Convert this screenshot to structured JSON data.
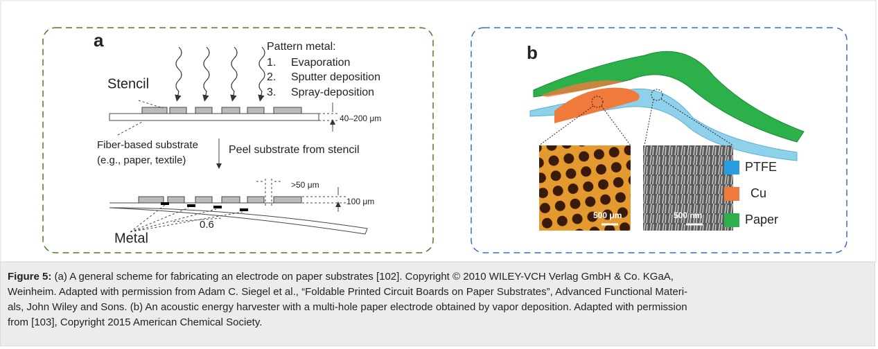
{
  "panel_a": {
    "label": "a",
    "pattern_title": "Pattern metal:",
    "steps": [
      {
        "number": "1.",
        "text": "Evaporation"
      },
      {
        "number": "2.",
        "text": "Sputter deposition"
      },
      {
        "number": "3.",
        "text": "Spray-deposition"
      }
    ],
    "stencil": "Stencil",
    "thickness": "40–200 μm",
    "substrate": "Fiber-based substrate",
    "substrate_examples": "(e.g., paper, textile)",
    "peel": "Peel substrate from stencil",
    "gap": ">50 μm",
    "bottom_thickness": "100 μm",
    "angle": "0.6",
    "metal": "Metal"
  },
  "panel_b": {
    "label": "b",
    "scale_left": "500 μm",
    "scale_right": "500 nm",
    "legend": [
      {
        "name": "PTFE",
        "color": "#2a9de0"
      },
      {
        "name": "Cu",
        "color": "#f07a3c"
      },
      {
        "name": "Paper",
        "color": "#2bb04a"
      }
    ]
  },
  "caption": {
    "label": "Figure 5:",
    "lines": [
      "(a) A general scheme for fabricating an electrode on paper substrates [102]. Copyright © 2010 WILEY-VCH Verlag GmbH & Co. KGaA,",
      "Weinheim. Adapted with permission from Adam C. Siegel et al., “Foldable Printed Circuit Boards on Paper Substrates”, Advanced Functional Materi-",
      "als, John Wiley and Sons. (b) An acoustic energy harvester with a multi-hole paper electrode obtained by vapor deposition. Adapted with permission",
      "from [103], Copyright 2015 American Chemical Society."
    ]
  }
}
